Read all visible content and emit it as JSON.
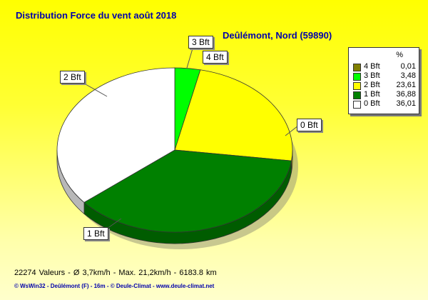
{
  "header": {
    "title": "Distribution Force du vent  août 2018",
    "subtitle": "Deûlémont, Nord (59890)"
  },
  "chart_data": {
    "type": "pie",
    "title": "Distribution Force du vent  août 2018",
    "subtitle": "Deûlémont, Nord (59890)",
    "unit": "%",
    "slices": [
      {
        "label": "4 Bft",
        "value": 0.01,
        "value_text": "0,01",
        "color": "#808000"
      },
      {
        "label": "3 Bft",
        "value": 3.48,
        "value_text": "3,48",
        "color": "#00ff00"
      },
      {
        "label": "2 Bft",
        "value": 23.61,
        "value_text": "23,61",
        "color": "#ffff00"
      },
      {
        "label": "1 Bft",
        "value": 36.88,
        "value_text": "36,88",
        "color": "#008000"
      },
      {
        "label": "0 Bft",
        "value": 36.01,
        "value_text": "36,01",
        "color": "#ffffff"
      }
    ],
    "legend_placement": "right"
  },
  "legend": {
    "header": "%"
  },
  "stats": "22274 Valeurs   -   Ø 3,7km/h  -  Max. 21,2km/h   -   6183.8 km",
  "footer": "© WsWin32  -  Deûlémont (F) - 16m  -  © Deule-Climat - www.deule-climat.net"
}
